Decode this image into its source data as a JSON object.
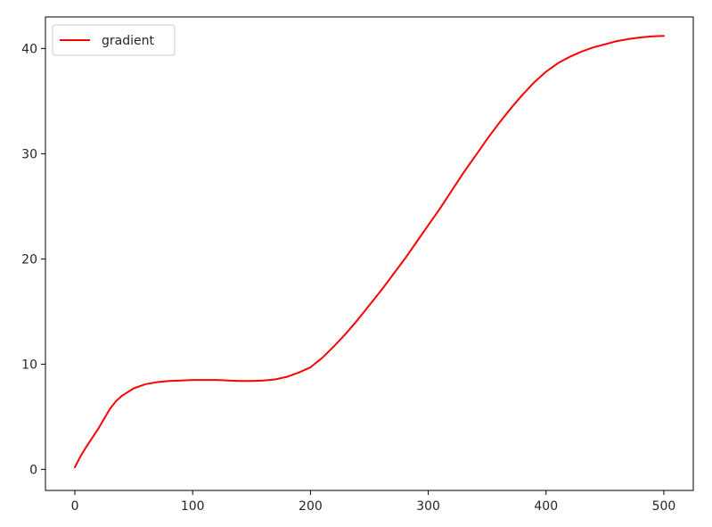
{
  "chart_data": {
    "type": "line",
    "title": "",
    "xlabel": "",
    "ylabel": "",
    "xlim": [
      -25,
      525
    ],
    "ylim": [
      -2,
      43
    ],
    "xticks": [
      0,
      100,
      200,
      300,
      400,
      500
    ],
    "yticks": [
      0,
      10,
      20,
      30,
      40
    ],
    "grid": false,
    "legend": {
      "placement": "top-left",
      "entries": [
        "gradient"
      ]
    },
    "series": [
      {
        "name": "gradient",
        "color": "#ff0000",
        "x": [
          0,
          5,
          10,
          20,
          30,
          35,
          40,
          50,
          60,
          70,
          80,
          90,
          100,
          110,
          120,
          130,
          140,
          150,
          160,
          170,
          180,
          190,
          200,
          210,
          220,
          230,
          240,
          250,
          260,
          270,
          280,
          290,
          300,
          310,
          320,
          330,
          340,
          350,
          360,
          370,
          380,
          390,
          400,
          410,
          420,
          430,
          440,
          450,
          460,
          470,
          480,
          490,
          500
        ],
        "y": [
          0.2,
          1.3,
          2.2,
          3.9,
          5.8,
          6.5,
          7.0,
          7.7,
          8.1,
          8.3,
          8.4,
          8.45,
          8.5,
          8.5,
          8.5,
          8.45,
          8.4,
          8.4,
          8.45,
          8.55,
          8.8,
          9.2,
          9.7,
          10.6,
          11.7,
          12.9,
          14.2,
          15.6,
          17.0,
          18.5,
          20.0,
          21.6,
          23.2,
          24.8,
          26.5,
          28.2,
          29.8,
          31.4,
          32.9,
          34.3,
          35.6,
          36.8,
          37.8,
          38.6,
          39.2,
          39.7,
          40.1,
          40.4,
          40.7,
          40.9,
          41.05,
          41.15,
          41.2
        ]
      }
    ]
  }
}
